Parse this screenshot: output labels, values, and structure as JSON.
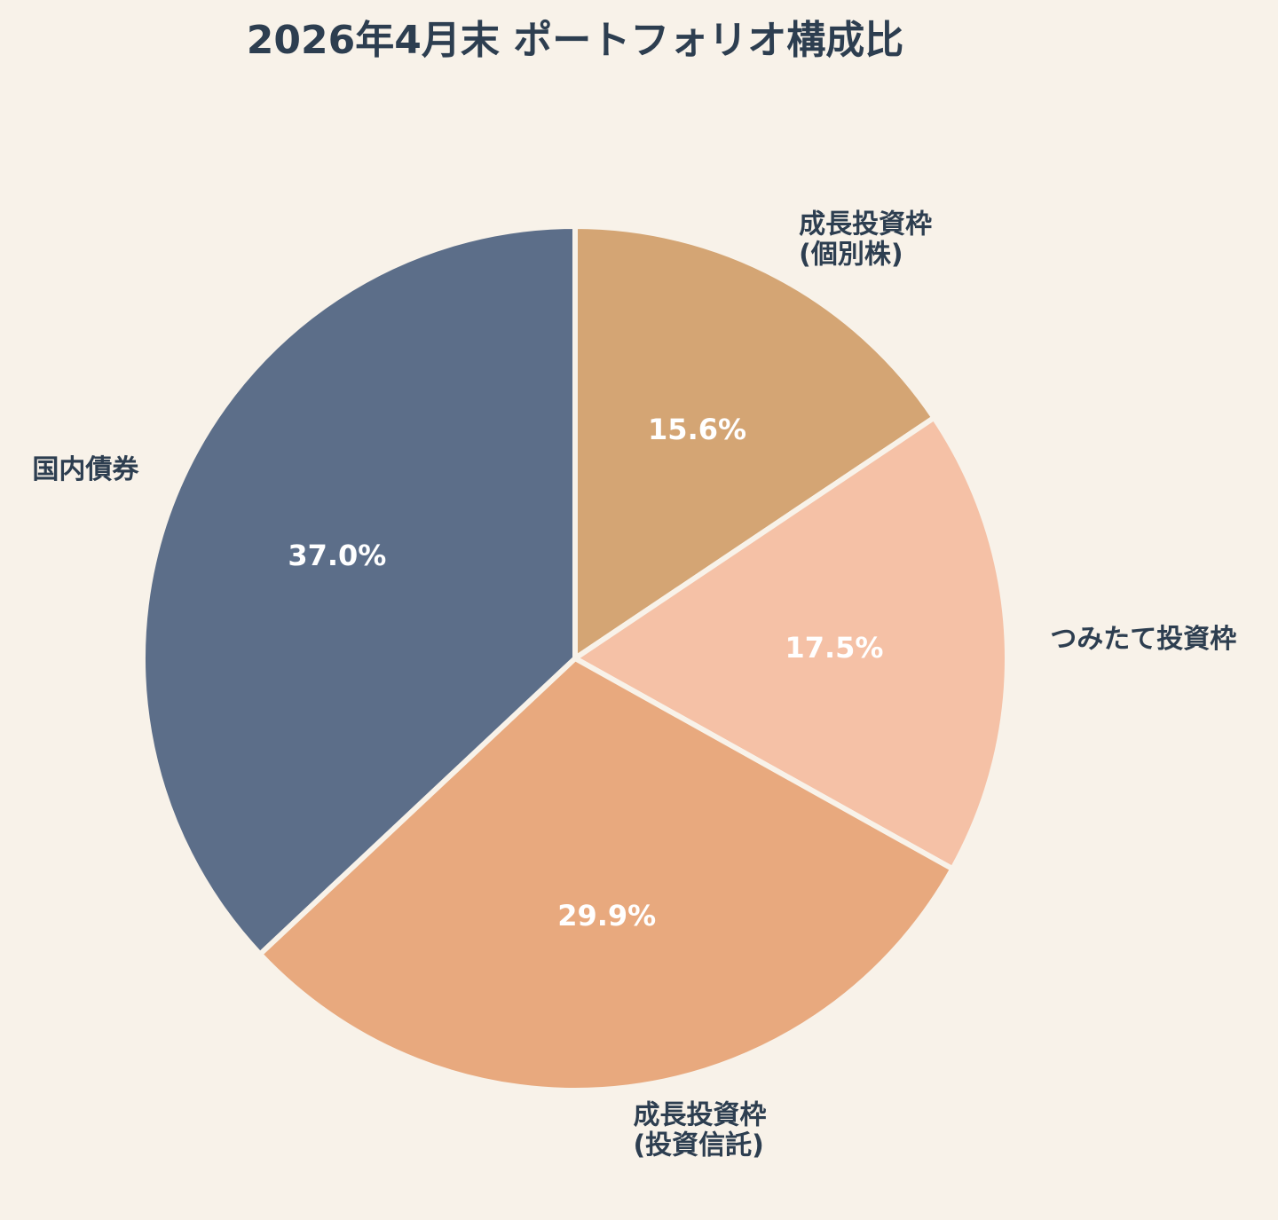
{
  "chart_data": {
    "type": "pie",
    "title": "2026年4月末 ポートフォリオ構成比",
    "start_angle_deg": 90,
    "direction": "clockwise",
    "slice_border_color": "#f8f2e9",
    "background_color": "#f8f2e9",
    "slices": [
      {
        "label": "成長投資枠\n(個別株)",
        "value": 15.6,
        "display": "15.6%",
        "color": "#d4a574"
      },
      {
        "label": "つみたて投資枠",
        "value": 17.5,
        "display": "17.5%",
        "color": "#f5c1a6"
      },
      {
        "label": "成長投資枠\n(投資信託)",
        "value": 29.9,
        "display": "29.9%",
        "color": "#e8a97e"
      },
      {
        "label": "国内債券",
        "value": 37.0,
        "display": "37.0%",
        "color": "#5c6e89"
      }
    ]
  }
}
